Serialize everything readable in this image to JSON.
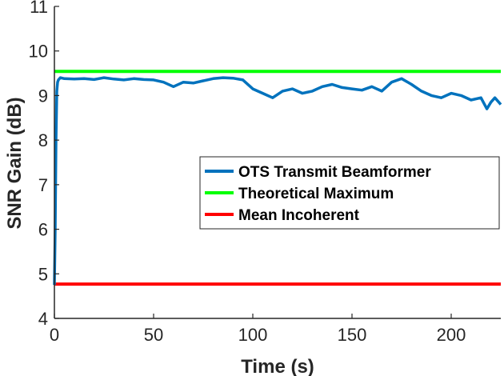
{
  "chart_data": {
    "type": "line",
    "title": "",
    "xlabel": "Time (s)",
    "ylabel": "SNR Gain (dB)",
    "xlim": [
      0,
      225
    ],
    "ylim": [
      4,
      11
    ],
    "x_ticks": [
      0,
      50,
      100,
      150,
      200
    ],
    "y_ticks": [
      4,
      5,
      6,
      7,
      8,
      9,
      10,
      11
    ],
    "grid": false,
    "legend_position": "center-right",
    "series": [
      {
        "name": "OTS Transmit Beamformer",
        "color": "#0072BD",
        "x": [
          0,
          0.4,
          0.8,
          1.2,
          1.6,
          2,
          3,
          5,
          10,
          15,
          20,
          25,
          30,
          35,
          40,
          45,
          50,
          55,
          60,
          65,
          70,
          75,
          80,
          85,
          90,
          95,
          100,
          105,
          110,
          115,
          120,
          125,
          130,
          135,
          140,
          145,
          150,
          155,
          160,
          165,
          170,
          175,
          180,
          185,
          190,
          195,
          200,
          205,
          210,
          215,
          218,
          220,
          222,
          225
        ],
        "y": [
          4.75,
          6.0,
          8.0,
          9.1,
          9.3,
          9.35,
          9.4,
          9.38,
          9.37,
          9.38,
          9.36,
          9.4,
          9.37,
          9.35,
          9.38,
          9.36,
          9.35,
          9.3,
          9.2,
          9.3,
          9.28,
          9.33,
          9.38,
          9.4,
          9.39,
          9.35,
          9.15,
          9.05,
          8.95,
          9.1,
          9.15,
          9.05,
          9.1,
          9.2,
          9.25,
          9.18,
          9.15,
          9.12,
          9.2,
          9.1,
          9.3,
          9.38,
          9.25,
          9.1,
          9.0,
          8.95,
          9.05,
          9.0,
          8.9,
          8.95,
          8.7,
          8.85,
          8.95,
          8.8
        ]
      },
      {
        "name": "Theoretical Maximum",
        "color": "#00FF00",
        "x": [
          0,
          225
        ],
        "y": [
          9.54,
          9.54
        ]
      },
      {
        "name": "Mean Incoherent",
        "color": "#FF0000",
        "x": [
          0,
          225
        ],
        "y": [
          4.77,
          4.77
        ]
      }
    ]
  }
}
